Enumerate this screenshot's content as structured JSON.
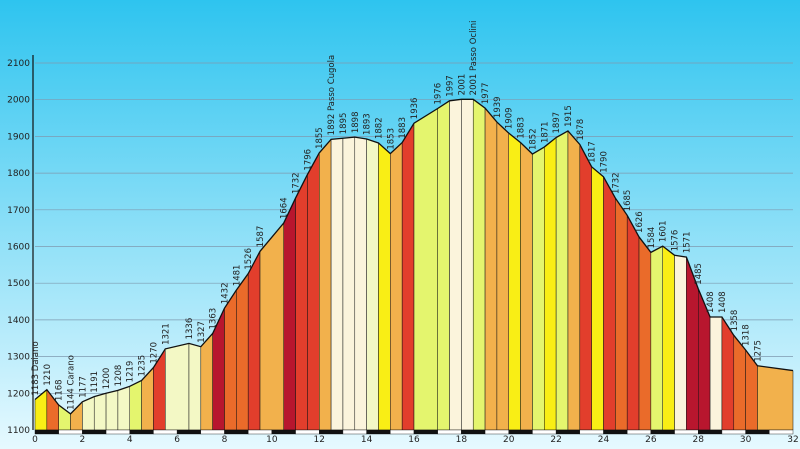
{
  "chart_data": {
    "type": "area",
    "xlabel": "",
    "ylabel": "",
    "xlim": [
      0,
      32
    ],
    "ylim": [
      1100,
      2100
    ],
    "y_ticks": [
      "1100",
      "1200",
      "1300",
      "1400",
      "1500",
      "1600",
      "1700",
      "1800",
      "1900",
      "2000",
      "2100"
    ],
    "x_ticks": [
      "0",
      "2",
      "4",
      "6",
      "8",
      "10",
      "12",
      "14",
      "16",
      "18",
      "20",
      "22",
      "24",
      "26",
      "28",
      "30",
      "32"
    ],
    "grid": true,
    "colors": {
      "sky_top": "#2ec4ef",
      "sky_bottom": "#e6f9ff",
      "gradient_0": "#fbf4dc",
      "gradient_1": "#f3f8c5",
      "gradient_2": "#e4f56e",
      "gradient_3": "#f9ee15",
      "gradient_5": "#f2b14c",
      "gradient_8": "#ea6b2a",
      "gradient_10": "#e23e2c",
      "gradient_13": "#b8162e",
      "outline": "#111111",
      "grid": "#7f9ab0"
    },
    "points": [
      {
        "x": 0.0,
        "y": 1183,
        "label": "1183 Daiano"
      },
      {
        "x": 0.5,
        "y": 1210,
        "label": "1210"
      },
      {
        "x": 1.0,
        "y": 1168,
        "label": "1168"
      },
      {
        "x": 1.5,
        "y": 1144,
        "label": "1144 Carano"
      },
      {
        "x": 2.0,
        "y": 1177,
        "label": "1177"
      },
      {
        "x": 2.5,
        "y": 1191,
        "label": "1191"
      },
      {
        "x": 3.0,
        "y": 1200,
        "label": "1200"
      },
      {
        "x": 3.5,
        "y": 1208,
        "label": "1208"
      },
      {
        "x": 4.0,
        "y": 1219,
        "label": "1219"
      },
      {
        "x": 4.5,
        "y": 1235,
        "label": "1235"
      },
      {
        "x": 5.0,
        "y": 1270,
        "label": "1270"
      },
      {
        "x": 5.5,
        "y": 1321,
        "label": "1321"
      },
      {
        "x": 6.5,
        "y": 1336,
        "label": "1336"
      },
      {
        "x": 7.0,
        "y": 1327,
        "label": "1327"
      },
      {
        "x": 7.5,
        "y": 1363,
        "label": "1363"
      },
      {
        "x": 8.0,
        "y": 1432,
        "label": "1432"
      },
      {
        "x": 8.5,
        "y": 1481,
        "label": "1481"
      },
      {
        "x": 9.0,
        "y": 1526,
        "label": "1526"
      },
      {
        "x": 9.5,
        "y": 1587,
        "label": "1587"
      },
      {
        "x": 10.5,
        "y": 1664,
        "label": "1664"
      },
      {
        "x": 11.0,
        "y": 1732,
        "label": "1732"
      },
      {
        "x": 11.5,
        "y": 1796,
        "label": "1796"
      },
      {
        "x": 12.0,
        "y": 1855,
        "label": "1855"
      },
      {
        "x": 12.5,
        "y": 1892,
        "label": "1892 Passo Cugola"
      },
      {
        "x": 13.0,
        "y": 1895,
        "label": "1895"
      },
      {
        "x": 13.5,
        "y": 1898,
        "label": "1898"
      },
      {
        "x": 14.0,
        "y": 1893,
        "label": "1893"
      },
      {
        "x": 14.5,
        "y": 1882,
        "label": "1882"
      },
      {
        "x": 15.0,
        "y": 1853,
        "label": "1853"
      },
      {
        "x": 15.5,
        "y": 1883,
        "label": "1883"
      },
      {
        "x": 16.0,
        "y": 1936,
        "label": "1936"
      },
      {
        "x": 17.0,
        "y": 1976,
        "label": "1976"
      },
      {
        "x": 17.5,
        "y": 1997,
        "label": "1997"
      },
      {
        "x": 18.0,
        "y": 2001,
        "label": "2001"
      },
      {
        "x": 18.5,
        "y": 2001,
        "label": "2001 Passo Oclini"
      },
      {
        "x": 19.0,
        "y": 1977,
        "label": "1977"
      },
      {
        "x": 19.5,
        "y": 1939,
        "label": "1939"
      },
      {
        "x": 20.0,
        "y": 1909,
        "label": "1909"
      },
      {
        "x": 20.5,
        "y": 1883,
        "label": "1883"
      },
      {
        "x": 21.0,
        "y": 1852,
        "label": "1852"
      },
      {
        "x": 21.5,
        "y": 1871,
        "label": "1871"
      },
      {
        "x": 22.0,
        "y": 1897,
        "label": "1897"
      },
      {
        "x": 22.5,
        "y": 1915,
        "label": "1915"
      },
      {
        "x": 23.0,
        "y": 1878,
        "label": "1878"
      },
      {
        "x": 23.5,
        "y": 1817,
        "label": "1817"
      },
      {
        "x": 24.0,
        "y": 1790,
        "label": "1790"
      },
      {
        "x": 24.5,
        "y": 1732,
        "label": "1732"
      },
      {
        "x": 25.0,
        "y": 1685,
        "label": "1685"
      },
      {
        "x": 25.5,
        "y": 1626,
        "label": "1626"
      },
      {
        "x": 26.0,
        "y": 1584,
        "label": "1584"
      },
      {
        "x": 26.5,
        "y": 1601,
        "label": "1601"
      },
      {
        "x": 27.0,
        "y": 1576,
        "label": "1576"
      },
      {
        "x": 27.5,
        "y": 1571,
        "label": "1571"
      },
      {
        "x": 28.0,
        "y": 1485,
        "label": "1485"
      },
      {
        "x": 28.5,
        "y": 1408,
        "label": "1408"
      },
      {
        "x": 29.0,
        "y": 1408,
        "label": "1408"
      },
      {
        "x": 29.5,
        "y": 1358,
        "label": "1358"
      },
      {
        "x": 30.0,
        "y": 1318,
        "label": "1318"
      },
      {
        "x": 30.5,
        "y": 1275,
        "label": "1275"
      }
    ]
  }
}
